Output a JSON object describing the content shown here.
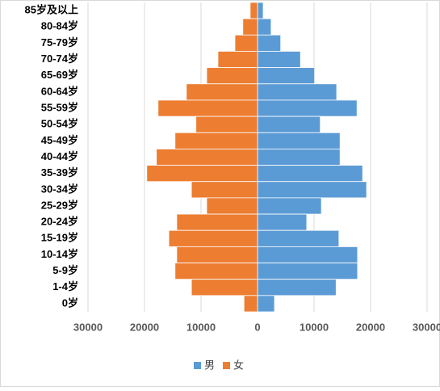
{
  "chart_data": {
    "type": "bar",
    "orientation": "horizontal",
    "stacked": false,
    "categories": [
      "85岁及以上",
      "80-84岁",
      "75-79岁",
      "70-74岁",
      "65-69岁",
      "60-64岁",
      "55-59岁",
      "50-54岁",
      "45-49岁",
      "40-44岁",
      "35-39岁",
      "30-34岁",
      "25-29岁",
      "20-24岁",
      "15-19岁",
      "10-14岁",
      "5-9岁",
      "1-4岁",
      "0岁"
    ],
    "series": [
      {
        "name": "男",
        "color": "#5b9bd5",
        "values": [
          1000,
          2400,
          4100,
          7600,
          10100,
          14000,
          17600,
          11100,
          14600,
          14600,
          18600,
          19300,
          11300,
          8700,
          14400,
          17700,
          17700,
          13900,
          3000
        ]
      },
      {
        "name": "女",
        "color": "#ed7d31",
        "values": [
          -1300,
          -2600,
          -4000,
          -7000,
          -9000,
          -12600,
          -17600,
          -10900,
          -14600,
          -17900,
          -19600,
          -11700,
          -9000,
          -14300,
          -15700,
          -14300,
          -14600,
          -11700,
          -2400
        ]
      }
    ],
    "xlim": [
      -30000,
      30000
    ],
    "xticks": [
      {
        "value": -30000,
        "label": "30000"
      },
      {
        "value": -20000,
        "label": "20000"
      },
      {
        "value": -10000,
        "label": "10000"
      },
      0,
      10000,
      20000,
      30000
    ],
    "grid": true,
    "legend": "bottom"
  }
}
